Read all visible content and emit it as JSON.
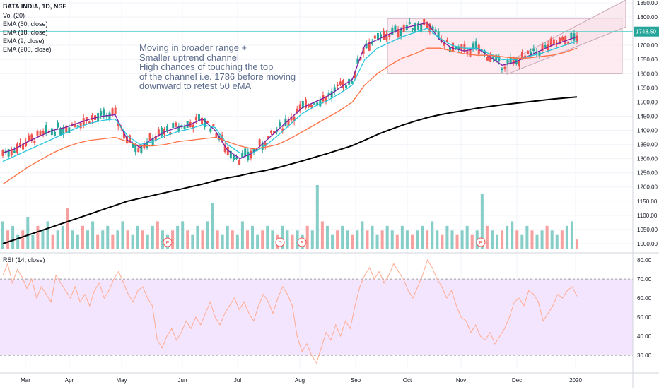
{
  "header": {
    "symbol_line": "BATA INDIA, 1D, NSE",
    "indicators": [
      "Vol (20)",
      "EMA (50, close)",
      "EMA (18, close)",
      "EMA (9, close)",
      "EMA (200, close)"
    ],
    "rsi_label": "RSI (14, close)"
  },
  "annotation": {
    "lines": [
      "Moving in broader range +",
      "Smaller uptrend channel",
      "High chances of touching the top",
      "of the channel i.e. 1786 before moving",
      "downward to retest 50 eMA"
    ]
  },
  "price_tag": "1748.50",
  "colors": {
    "up": "#26a69a",
    "down": "#ef5350",
    "ema9": "#7b1fa2",
    "ema18": "#26c6da",
    "ema50": "#ff7043",
    "ema200": "#000000",
    "rsi_line": "#ffab91",
    "rsi_band": "#f3e5fd",
    "range_box": "#fce4ec",
    "channel": "#f8e1ea"
  },
  "chart_data": [
    {
      "type": "line",
      "title": "BATA INDIA, 1D, NSE",
      "x_ticks": [
        "Mar",
        "Apr",
        "May",
        "Jun",
        "Jul",
        "Aug",
        "Sep",
        "Oct",
        "Nov",
        "Dec",
        "2020"
      ],
      "y_ticks": [
        "1850.00",
        "1800.00",
        "1750.00",
        "1700.00",
        "1650.00",
        "1600.00",
        "1550.00",
        "1500.00",
        "1450.00",
        "1400.00",
        "1350.00",
        "1300.00",
        "1250.00",
        "1200.00",
        "1150.00",
        "1100.00",
        "1050.00",
        "1000.00"
      ],
      "ylim": [
        975,
        1860
      ],
      "series": [
        {
          "name": "EMA (9, close)",
          "y": [
            1320,
            1335,
            1360,
            1380,
            1400,
            1410,
            1425,
            1440,
            1450,
            1455,
            1365,
            1340,
            1370,
            1395,
            1410,
            1420,
            1440,
            1400,
            1330,
            1300,
            1320,
            1360,
            1400,
            1440,
            1480,
            1500,
            1520,
            1550,
            1580,
            1700,
            1720,
            1740,
            1760,
            1770,
            1780,
            1720,
            1690,
            1680,
            1690,
            1660,
            1630,
            1640,
            1660,
            1680,
            1700,
            1715,
            1730
          ]
        },
        {
          "name": "EMA (18, close)",
          "y": [
            1290,
            1310,
            1330,
            1350,
            1370,
            1390,
            1410,
            1425,
            1435,
            1440,
            1380,
            1350,
            1360,
            1380,
            1395,
            1405,
            1420,
            1410,
            1350,
            1320,
            1320,
            1345,
            1380,
            1420,
            1460,
            1485,
            1505,
            1530,
            1560,
            1650,
            1690,
            1710,
            1730,
            1745,
            1760,
            1725,
            1700,
            1690,
            1690,
            1670,
            1650,
            1650,
            1660,
            1670,
            1685,
            1700,
            1715
          ]
        },
        {
          "name": "EMA (50, close)",
          "y": [
            1210,
            1240,
            1270,
            1295,
            1320,
            1340,
            1355,
            1365,
            1370,
            1375,
            1360,
            1345,
            1345,
            1350,
            1360,
            1365,
            1370,
            1375,
            1360,
            1345,
            1335,
            1340,
            1350,
            1370,
            1395,
            1420,
            1445,
            1470,
            1500,
            1560,
            1600,
            1630,
            1655,
            1670,
            1690,
            1690,
            1680,
            1670,
            1665,
            1665,
            1660,
            1655,
            1655,
            1660,
            1665,
            1675,
            1690
          ]
        },
        {
          "name": "EMA (200, close)",
          "y": [
            1000,
            1015,
            1030,
            1045,
            1060,
            1075,
            1090,
            1105,
            1120,
            1135,
            1150,
            1160,
            1170,
            1180,
            1190,
            1200,
            1210,
            1222,
            1232,
            1240,
            1250,
            1258,
            1268,
            1280,
            1292,
            1305,
            1318,
            1332,
            1346,
            1365,
            1385,
            1402,
            1418,
            1432,
            1445,
            1455,
            1463,
            1470,
            1478,
            1484,
            1490,
            1495,
            1500,
            1505,
            1510,
            1514,
            1518
          ]
        }
      ],
      "annotations": {
        "range_top": 1795,
        "range_bottom": 1600,
        "channel_target": 1786,
        "last_price": 1748.5
      }
    },
    {
      "type": "bar",
      "title": "Vol (20)",
      "values": [
        0.6,
        0.4,
        0.5,
        0.3,
        0.4,
        0.7,
        0.3,
        0.5,
        0.4,
        0.6,
        0.3,
        0.4,
        0.5,
        0.9,
        0.4,
        0.3,
        0.5,
        0.4,
        0.6,
        0.3,
        0.4,
        0.5,
        0.3,
        0.4,
        0.6,
        0.4,
        0.3,
        0.5,
        0.4,
        0.3,
        0.5,
        0.6,
        0.4,
        0.3,
        0.4,
        0.5,
        0.6,
        0.4,
        0.3,
        0.5,
        0.4,
        0.6,
        1.0,
        0.4,
        0.3,
        0.5,
        0.4,
        0.3,
        0.6,
        0.4,
        0.5,
        0.3,
        0.4,
        0.5,
        0.4,
        0.3,
        0.5,
        0.4,
        0.3,
        0.4,
        0.3,
        0.5,
        0.4,
        1.4,
        0.6,
        0.5,
        0.3,
        0.4,
        0.5,
        0.4,
        0.3,
        0.4,
        0.6,
        0.4,
        0.5,
        0.3,
        0.4,
        0.5,
        0.4,
        0.3,
        0.5,
        0.4,
        0.3,
        0.4,
        0.5,
        0.4,
        0.6,
        0.4,
        0.3,
        0.5,
        0.4,
        0.3,
        0.4,
        0.5,
        0.3,
        0.4,
        1.2,
        0.5,
        0.4,
        0.3,
        0.4,
        0.5,
        0.6,
        0.4,
        0.3,
        0.5,
        0.4,
        0.3,
        0.4,
        0.5,
        0.4,
        0.3,
        0.4,
        0.5,
        0.6,
        0.2
      ]
    },
    {
      "type": "line",
      "title": "RSI (14, close)",
      "y_ticks": [
        "80.00",
        "70.00",
        "60.00",
        "50.00",
        "40.00",
        "30.00"
      ],
      "ylim": [
        23,
        83
      ],
      "band": [
        30,
        70
      ],
      "series": [
        {
          "name": "RSI (14, close)",
          "y": [
            72,
            78,
            68,
            75,
            71,
            65,
            70,
            60,
            66,
            62,
            58,
            72,
            68,
            64,
            60,
            66,
            58,
            62,
            56,
            64,
            68,
            60,
            64,
            70,
            74,
            68,
            62,
            58,
            64,
            66,
            60,
            56,
            38,
            34,
            40,
            44,
            38,
            42,
            48,
            44,
            50,
            46,
            52,
            58,
            50,
            46,
            52,
            56,
            60,
            54,
            58,
            52,
            48,
            56,
            62,
            58,
            52,
            60,
            66,
            62,
            56,
            40,
            32,
            36,
            30,
            26,
            34,
            42,
            38,
            46,
            40,
            48,
            44,
            56,
            66,
            72,
            76,
            70,
            74,
            68,
            72,
            78,
            74,
            70,
            64,
            60,
            66,
            72,
            80,
            76,
            70,
            66,
            60,
            64,
            56,
            50,
            48,
            42,
            46,
            40,
            38,
            42,
            36,
            40,
            44,
            50,
            58,
            60,
            56,
            64,
            62,
            58,
            48,
            52,
            56,
            62,
            60,
            64,
            66,
            61
          ]
        }
      ]
    }
  ]
}
